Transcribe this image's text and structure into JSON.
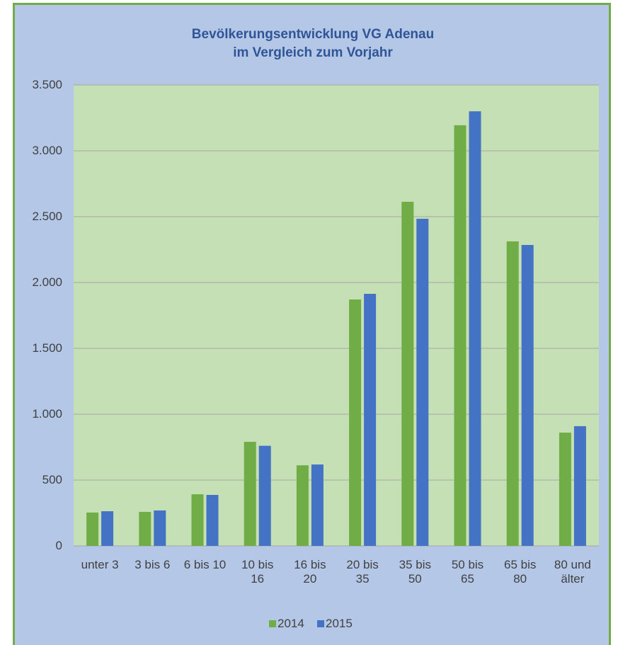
{
  "chart_data": {
    "type": "bar",
    "title": "Bevölkerungsentwicklung VG Adenau\nim Vergleich zum Vorjahr",
    "categories": [
      "unter 3",
      "3 bis 6",
      "6 bis 10",
      "10 bis 16",
      "16 bis 20",
      "20 bis 35",
      "35 bis 50",
      "50 bis 65",
      "65 bis 80",
      "80 und älter"
    ],
    "series": [
      {
        "name": "2014",
        "color": "#70ad47",
        "values": [
          253,
          258,
          392,
          790,
          612,
          1871,
          2613,
          3194,
          2312,
          860
        ]
      },
      {
        "name": "2015",
        "color": "#4472c4",
        "values": [
          263,
          269,
          387,
          760,
          618,
          1914,
          2484,
          3300,
          2285,
          909
        ]
      }
    ],
    "ylim": [
      0,
      3500
    ],
    "yticks": [
      0,
      500,
      {
        "value": 1000,
        "label": "1.000"
      },
      {
        "value": 1500,
        "label": "1.500"
      },
      {
        "value": 2000,
        "label": "2.000"
      },
      {
        "value": 2500,
        "label": "2.500"
      },
      {
        "value": 3000,
        "label": "3.000"
      },
      {
        "value": 3500,
        "label": "3.500"
      }
    ],
    "grid": true,
    "legend": "bottom"
  }
}
